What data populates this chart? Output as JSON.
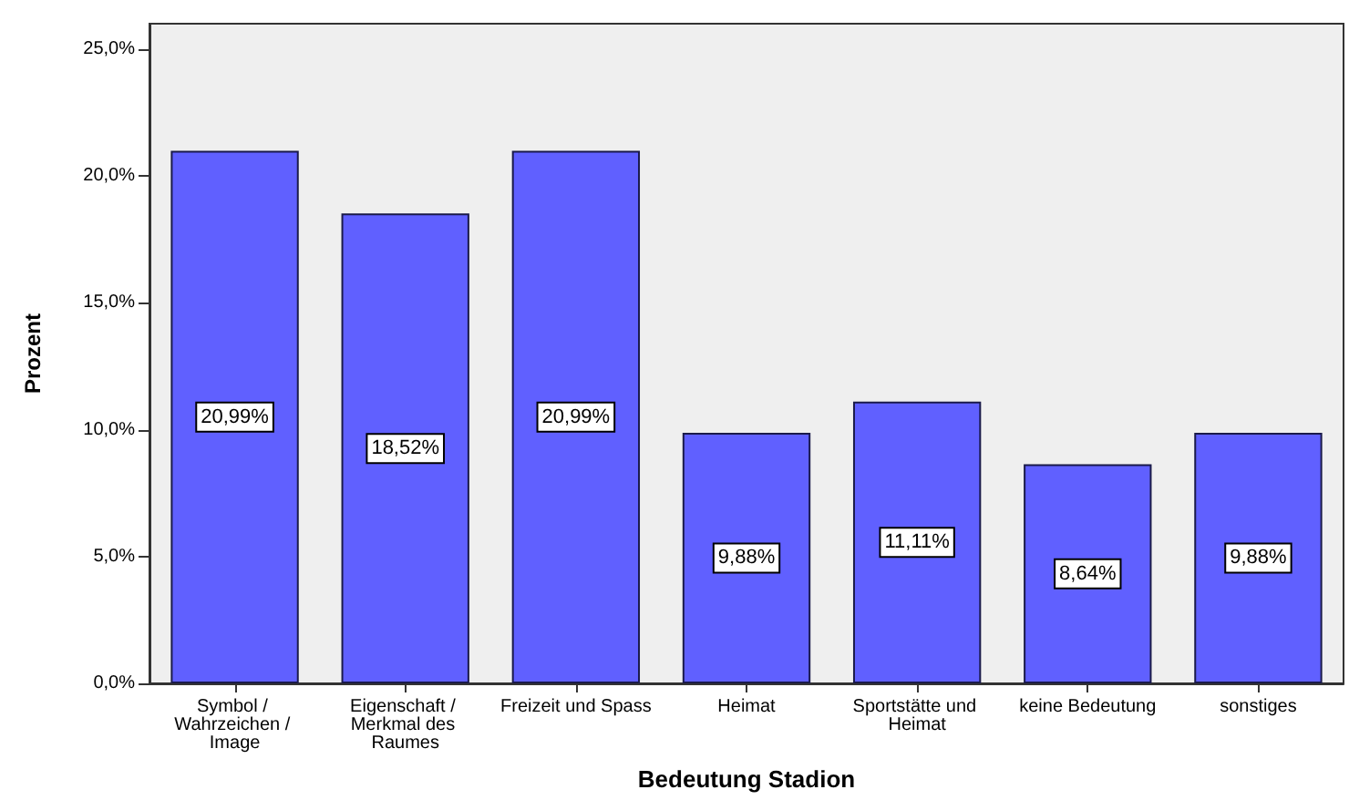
{
  "chart_data": {
    "type": "bar",
    "xlabel": "Bedeutung Stadion",
    "ylabel": "Prozent",
    "categories": [
      "Symbol / Wahrzeichen / Image",
      "Eigenschaft / Merkmal des Raumes",
      "Freizeit und Spass",
      "Heimat",
      "Sportstätte und Heimat",
      "keine Bedeutung",
      "sonstiges"
    ],
    "values": [
      20.99,
      18.52,
      20.99,
      9.88,
      11.11,
      8.64,
      9.88
    ],
    "value_labels": [
      "20,99%",
      "18,52%",
      "20,99%",
      "9,88%",
      "11,11%",
      "8,64%",
      "9,88%"
    ],
    "color": "#6060ff",
    "ylim": [
      0,
      26
    ],
    "yticks": [
      {
        "value": 0,
        "label": "0,0%"
      },
      {
        "value": 5,
        "label": "5,0%"
      },
      {
        "value": 10,
        "label": "10,0%"
      },
      {
        "value": 15,
        "label": "15,0%"
      },
      {
        "value": 20,
        "label": "20,0%"
      },
      {
        "value": 25,
        "label": "25,0%"
      }
    ],
    "grid": false
  }
}
